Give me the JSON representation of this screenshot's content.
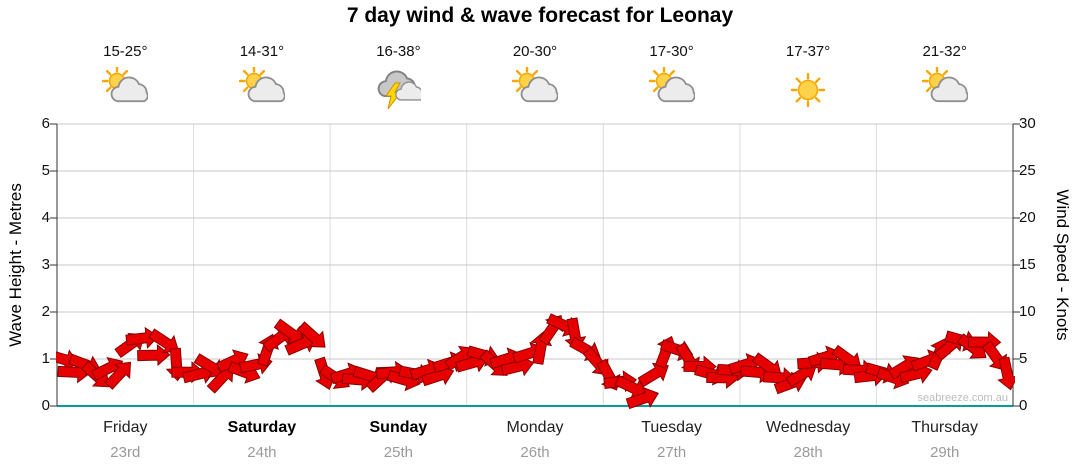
{
  "title": "7 day wind & wave forecast for Leonay",
  "watermark": "seabreeze.com.au",
  "days": [
    {
      "name": "Friday",
      "date": "23rd",
      "temp": "15-25°",
      "icon": "partly-cloudy",
      "bold": false
    },
    {
      "name": "Saturday",
      "date": "24th",
      "temp": "14-31°",
      "icon": "partly-cloudy",
      "bold": true
    },
    {
      "name": "Sunday",
      "date": "25th",
      "temp": "16-38°",
      "icon": "thunderstorm",
      "bold": true
    },
    {
      "name": "Monday",
      "date": "26th",
      "temp": "20-30°",
      "icon": "partly-cloudy",
      "bold": false
    },
    {
      "name": "Tuesday",
      "date": "27th",
      "temp": "17-30°",
      "icon": "partly-cloudy",
      "bold": false
    },
    {
      "name": "Wednesday",
      "date": "28th",
      "temp": "17-37°",
      "icon": "sunny",
      "bold": false
    },
    {
      "name": "Thursday",
      "date": "29th",
      "temp": "21-32°",
      "icon": "partly-cloudy",
      "bold": false
    }
  ],
  "chart_data": {
    "type": "line",
    "subtype": "wind-arrow-band",
    "title": "7 day wind & wave forecast for Leonay",
    "left_axis": {
      "label": "Wave Height - Metres",
      "min": 0,
      "max": 6,
      "ticks": [
        0,
        1,
        2,
        3,
        4,
        5,
        6
      ]
    },
    "right_axis": {
      "label": "Wind Speed - Knots",
      "min": 0,
      "max": 30,
      "ticks": [
        0,
        5,
        10,
        15,
        20,
        25,
        30
      ]
    },
    "grid": true,
    "points_per_day": 12,
    "series": [
      {
        "name": "Wind Speed",
        "color": "#e60000",
        "outline_color": "#8b0000",
        "values_knots": [
          5.0,
          3.6,
          4.4,
          3.2,
          4.0,
          3.4,
          6.6,
          7.2,
          5.4,
          6.8,
          4.4,
          3.6,
          3.4,
          4.2,
          3.0,
          4.8,
          3.6,
          4.4,
          6.0,
          7.2,
          7.8,
          6.6,
          7.4,
          3.4,
          3.0,
          3.4,
          2.8,
          3.2,
          3.0,
          3.6,
          2.8,
          3.4,
          3.8,
          3.2,
          4.6,
          5.2,
          4.6,
          5.4,
          4.4,
          5.0,
          4.2,
          5.6,
          6.2,
          8.2,
          8.6,
          7.6,
          6.0,
          4.6,
          3.2,
          2.6,
          2.0,
          0.8,
          3.4,
          5.8,
          6.0,
          5.0,
          4.2,
          3.4,
          3.0,
          3.8,
          4.4,
          3.6,
          4.2,
          3.0,
          2.4,
          3.4,
          4.6,
          5.2,
          4.4,
          5.0,
          3.8,
          3.2,
          3.6,
          3.0,
          4.2,
          3.4,
          4.8,
          5.6,
          6.4,
          7.0,
          6.2,
          6.8,
          5.2,
          3.4
        ]
      }
    ],
    "baseline_color": "#0a9a9a"
  },
  "colors": {
    "arrow_fill": "#e60000",
    "arrow_outline": "#8b0000",
    "gridline": "#c8c8c8",
    "day_divider": "#dcdcdc",
    "axis": "#333333",
    "baseline": "#0a9a9a"
  }
}
